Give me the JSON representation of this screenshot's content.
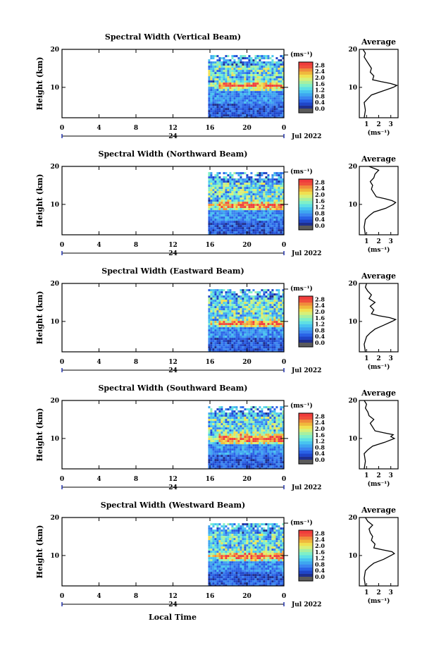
{
  "figure": {
    "xlabel": "Local Time",
    "date_label": "Jul 2022",
    "day_label": "24"
  },
  "colors": {
    "scale": [
      "#1e2f8e",
      "#1f45c8",
      "#2a62e6",
      "#3b85f0",
      "#3ea6f0",
      "#48c4f0",
      "#5ee0e4",
      "#7ff0c8",
      "#a8f0a0",
      "#d8f078",
      "#f0e050",
      "#f0b83c",
      "#f08c3c",
      "#f0503c",
      "#f03c3c"
    ],
    "underflow": "#5a5a5a",
    "blank": "#ffffff"
  },
  "chart_data": [
    {
      "type": "heatmap",
      "title": "Spectral Width (Vertical Beam)",
      "ylabel": "Height (km)",
      "xlim": [
        0,
        24
      ],
      "ylim": [
        2,
        20
      ],
      "x_ticks": [
        "0",
        "4",
        "8",
        "12",
        "16",
        "20",
        "0"
      ],
      "y_ticks": [
        "20",
        "10"
      ],
      "data_start_hour": 15.8,
      "strong_layer_km": [
        9.5,
        12
      ],
      "colorbar": {
        "unit": "(ms⁻¹)",
        "ticks": [
          "2.8",
          "2.4",
          "2.0",
          "1.6",
          "1.2",
          "0.8",
          "0.4",
          "0.0"
        ],
        "range": [
          0,
          3
        ]
      },
      "profile": {
        "title": "Average",
        "xlabel": "(ms⁻¹)",
        "xlim": [
          0.4,
          3.6
        ],
        "x_ticks": [
          "1",
          "2",
          "3"
        ],
        "y_ticks": [
          "20",
          "10"
        ],
        "height_km": [
          2,
          4,
          6,
          7,
          8,
          9,
          10,
          10.5,
          11,
          11.5,
          12,
          13,
          14,
          15,
          16,
          17,
          18,
          19,
          20
        ],
        "width": [
          0.8,
          0.9,
          0.8,
          1.1,
          1.4,
          2.3,
          3.2,
          3.5,
          3.0,
          2.2,
          1.5,
          1.6,
          1.3,
          1.4,
          1.2,
          1.0,
          0.8,
          0.9,
          0.7
        ]
      }
    },
    {
      "type": "heatmap",
      "title": "Spectral Width (Northward Beam)",
      "ylabel": "Height (km)",
      "xlim": [
        0,
        24
      ],
      "ylim": [
        2,
        20
      ],
      "x_ticks": [
        "0",
        "4",
        "8",
        "12",
        "16",
        "20",
        "0"
      ],
      "y_ticks": [
        "20",
        "10"
      ],
      "data_start_hour": 15.8,
      "strong_layer_km": [
        8.5,
        11.5
      ],
      "colorbar": {
        "unit": "(ms⁻¹)",
        "ticks": [
          "2.8",
          "2.4",
          "2.0",
          "1.6",
          "1.2",
          "0.8",
          "0.4",
          "0.0"
        ],
        "range": [
          0,
          3
        ]
      },
      "profile": {
        "title": "Average",
        "xlabel": "(ms⁻¹)",
        "xlim": [
          0.4,
          3.6
        ],
        "x_ticks": [
          "1",
          "2",
          "3"
        ],
        "y_ticks": [
          "20",
          "10"
        ],
        "height_km": [
          2,
          4,
          6,
          7,
          8,
          9,
          10,
          10.5,
          11,
          11.5,
          12,
          13,
          14,
          15,
          16,
          17,
          18,
          19,
          20
        ],
        "width": [
          0.9,
          0.8,
          0.9,
          1.2,
          1.6,
          2.6,
          3.2,
          3.4,
          3.1,
          2.5,
          1.8,
          1.6,
          1.4,
          1.5,
          1.3,
          1.6,
          1.7,
          2.0,
          1.2
        ]
      }
    },
    {
      "type": "heatmap",
      "title": "Spectral Width (Eastward Beam)",
      "ylabel": "Height (km)",
      "xlim": [
        0,
        24
      ],
      "ylim": [
        2,
        20
      ],
      "x_ticks": [
        "0",
        "4",
        "8",
        "12",
        "16",
        "20",
        "0"
      ],
      "y_ticks": [
        "20",
        "10"
      ],
      "data_start_hour": 15.8,
      "strong_layer_km": [
        8.5,
        11
      ],
      "colorbar": {
        "unit": "(ms⁻¹)",
        "ticks": [
          "2.8",
          "2.4",
          "2.0",
          "1.6",
          "1.2",
          "0.8",
          "0.4",
          "0.0"
        ],
        "range": [
          0,
          3
        ]
      },
      "profile": {
        "title": "Average",
        "xlabel": "(ms⁻¹)",
        "xlim": [
          0.4,
          3.6
        ],
        "x_ticks": [
          "1",
          "2",
          "3"
        ],
        "y_ticks": [
          "20",
          "10"
        ],
        "height_km": [
          2,
          4,
          6,
          7,
          8,
          9,
          10,
          10.5,
          11,
          11.5,
          12,
          13,
          14,
          15,
          16,
          17,
          18,
          19,
          20
        ],
        "width": [
          0.9,
          0.8,
          1.0,
          1.3,
          1.7,
          2.4,
          3.1,
          3.4,
          2.9,
          2.0,
          1.4,
          1.6,
          1.3,
          1.7,
          1.2,
          1.4,
          1.1,
          0.9,
          1.0
        ]
      }
    },
    {
      "type": "heatmap",
      "title": "Spectral Width (Southward Beam)",
      "ylabel": "Height (km)",
      "xlim": [
        0,
        24
      ],
      "ylim": [
        2,
        20
      ],
      "x_ticks": [
        "0",
        "4",
        "8",
        "12",
        "16",
        "20",
        "0"
      ],
      "y_ticks": [
        "20",
        "10"
      ],
      "data_start_hour": 15.8,
      "strong_layer_km": [
        8.5,
        12
      ],
      "colorbar": {
        "unit": "(ms⁻¹)",
        "ticks": [
          "2.8",
          "2.4",
          "2.0",
          "1.6",
          "1.2",
          "0.8",
          "0.4",
          "0.0"
        ],
        "range": [
          0,
          3
        ]
      },
      "profile": {
        "title": "Average",
        "xlabel": "(ms⁻¹)",
        "xlim": [
          0.4,
          3.6
        ],
        "x_ticks": [
          "1",
          "2",
          "3"
        ],
        "y_ticks": [
          "20",
          "10"
        ],
        "height_km": [
          2,
          4,
          6,
          7,
          8,
          9,
          10,
          10.5,
          11,
          11.5,
          12,
          13,
          14,
          15,
          16,
          17,
          18,
          19,
          20
        ],
        "width": [
          0.8,
          0.9,
          0.8,
          1.1,
          1.5,
          2.5,
          3.3,
          3.0,
          3.2,
          2.4,
          1.7,
          1.5,
          1.3,
          1.6,
          1.2,
          1.1,
          0.9,
          1.0,
          0.8
        ]
      }
    },
    {
      "type": "heatmap",
      "title": "Spectral Width (Westward Beam)",
      "ylabel": "Height (km)",
      "xlim": [
        0,
        24
      ],
      "ylim": [
        2,
        20
      ],
      "x_ticks": [
        "0",
        "4",
        "8",
        "12",
        "16",
        "20",
        "0"
      ],
      "y_ticks": [
        "20",
        "10"
      ],
      "data_start_hour": 15.8,
      "strong_layer_km": [
        8.5,
        11.5
      ],
      "colorbar": {
        "unit": "(ms⁻¹)",
        "ticks": [
          "2.8",
          "2.4",
          "2.0",
          "1.6",
          "1.2",
          "0.8",
          "0.4",
          "0.0"
        ],
        "range": [
          0,
          3
        ]
      },
      "profile": {
        "title": "Average",
        "xlabel": "(ms⁻¹)",
        "xlim": [
          0.4,
          3.6
        ],
        "x_ticks": [
          "1",
          "2",
          "3"
        ],
        "y_ticks": [
          "20",
          "10"
        ],
        "height_km": [
          2,
          4,
          6,
          7,
          8,
          9,
          10,
          10.5,
          11,
          11.5,
          12,
          13,
          14,
          15,
          16,
          17,
          18,
          19,
          20
        ],
        "width": [
          0.9,
          0.8,
          0.9,
          1.2,
          1.6,
          2.4,
          3.0,
          3.3,
          3.1,
          2.3,
          1.6,
          1.7,
          1.4,
          1.5,
          1.3,
          1.2,
          1.5,
          1.1,
          0.9
        ]
      }
    }
  ]
}
